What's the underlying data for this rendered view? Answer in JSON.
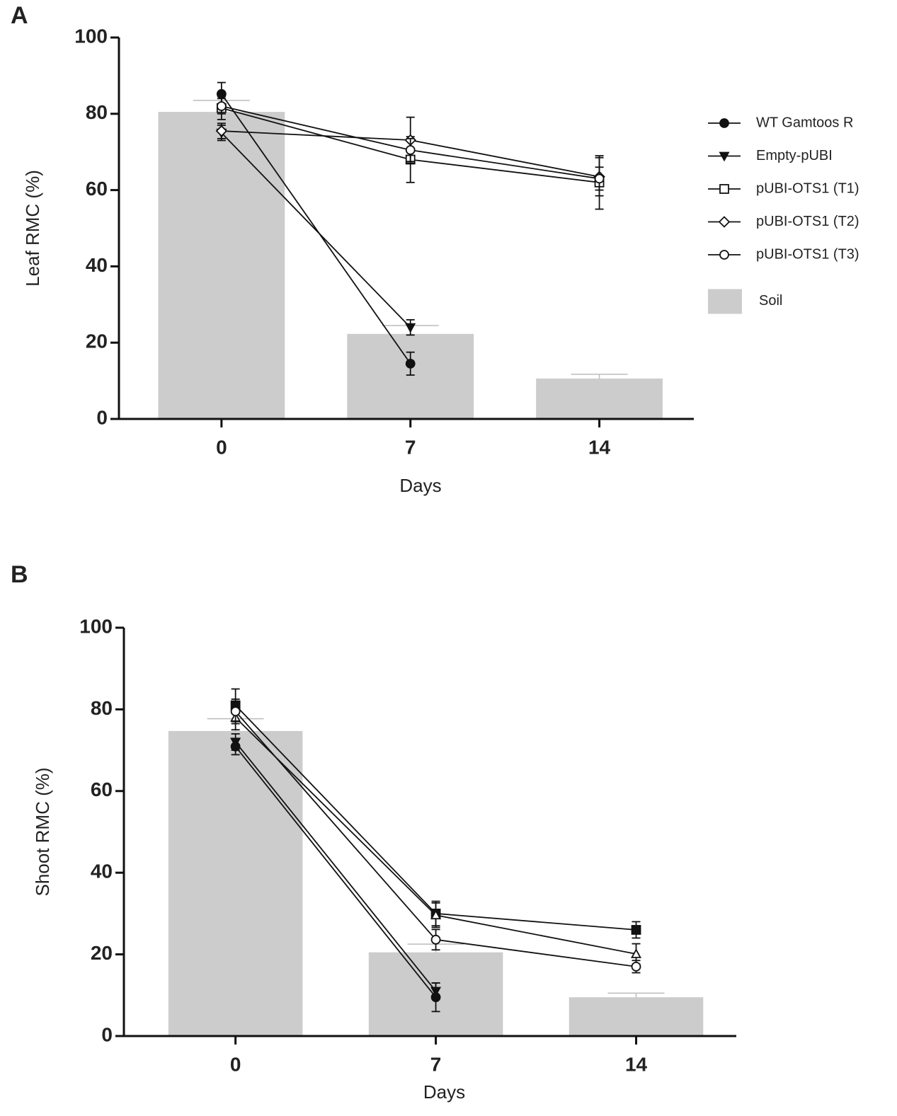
{
  "chart_data": [
    {
      "type": "combo",
      "panel_label": "A",
      "xlabel": "Days",
      "ylabel": "Leaf RMC (%)",
      "x": [
        0,
        7,
        14
      ],
      "xlim": [
        -3.8,
        17.5
      ],
      "xticks": [
        0,
        7,
        14
      ],
      "ylim": [
        0,
        100
      ],
      "yticks": [
        0,
        20,
        40,
        60,
        80,
        100
      ],
      "legend": "right",
      "bars": {
        "name": "Soil",
        "color": "#cccccc",
        "values": [
          80.5,
          22.3,
          10.6
        ],
        "errors": [
          3,
          2.2,
          1.1
        ]
      },
      "series": [
        {
          "name": "WT Gamtoos R",
          "color": "#111111",
          "marker": "circle",
          "values": [
            85.2,
            14.5,
            null
          ],
          "errors": [
            3,
            3,
            null
          ]
        },
        {
          "name": "Empty-pUBI",
          "color": "#111111",
          "marker": "triangle-down",
          "values": [
            75,
            24,
            null
          ],
          "errors": [
            2,
            2,
            null
          ]
        },
        {
          "name": "pUBI-OTS1 (T1)",
          "color": "#111111",
          "marker": "square-open",
          "values": [
            81.5,
            68,
            62
          ],
          "errors": [
            3,
            6,
            7
          ]
        },
        {
          "name": "pUBI-OTS1 (T2)",
          "color": "#111111",
          "marker": "diamond-open",
          "values": [
            75.5,
            73.1,
            63.5
          ],
          "errors": [
            2,
            6,
            5
          ]
        },
        {
          "name": "pUBI-OTS1 (T3)",
          "color": "#111111",
          "marker": "circle-open",
          "values": [
            82,
            70.5,
            63
          ],
          "errors": [
            2,
            3,
            3
          ]
        }
      ]
    },
    {
      "type": "combo",
      "panel_label": "B",
      "xlabel": "Days",
      "ylabel": "Shoot RMC (%)",
      "x": [
        0,
        7,
        14
      ],
      "xlim": [
        -3.9,
        17.5
      ],
      "xticks": [
        0,
        7,
        14
      ],
      "ylim": [
        0,
        100
      ],
      "yticks": [
        0,
        20,
        40,
        60,
        80,
        100
      ],
      "bars": {
        "color": "#cccccc",
        "values": [
          74.7,
          20.5,
          9.5
        ],
        "errors": [
          3,
          2,
          1
        ]
      },
      "series": [
        {
          "color": "#111111",
          "marker": "circle",
          "values": [
            70.9,
            9.5,
            null
          ],
          "errors": [
            2,
            3.5,
            null
          ]
        },
        {
          "color": "#111111",
          "marker": "triangle-down",
          "values": [
            72,
            11,
            null
          ],
          "errors": [
            2,
            2,
            null
          ]
        },
        {
          "color": "#111111",
          "marker": "square",
          "values": [
            81,
            30,
            26
          ],
          "errors": [
            4,
            3,
            2
          ]
        },
        {
          "color": "#111111",
          "marker": "triangle-open",
          "values": [
            78,
            29.6,
            20.1
          ],
          "errors": [
            3,
            3,
            2.5
          ]
        },
        {
          "color": "#111111",
          "marker": "circle-open",
          "values": [
            79.5,
            23.6,
            17
          ],
          "errors": [
            3,
            2.5,
            1.5
          ]
        }
      ]
    }
  ]
}
